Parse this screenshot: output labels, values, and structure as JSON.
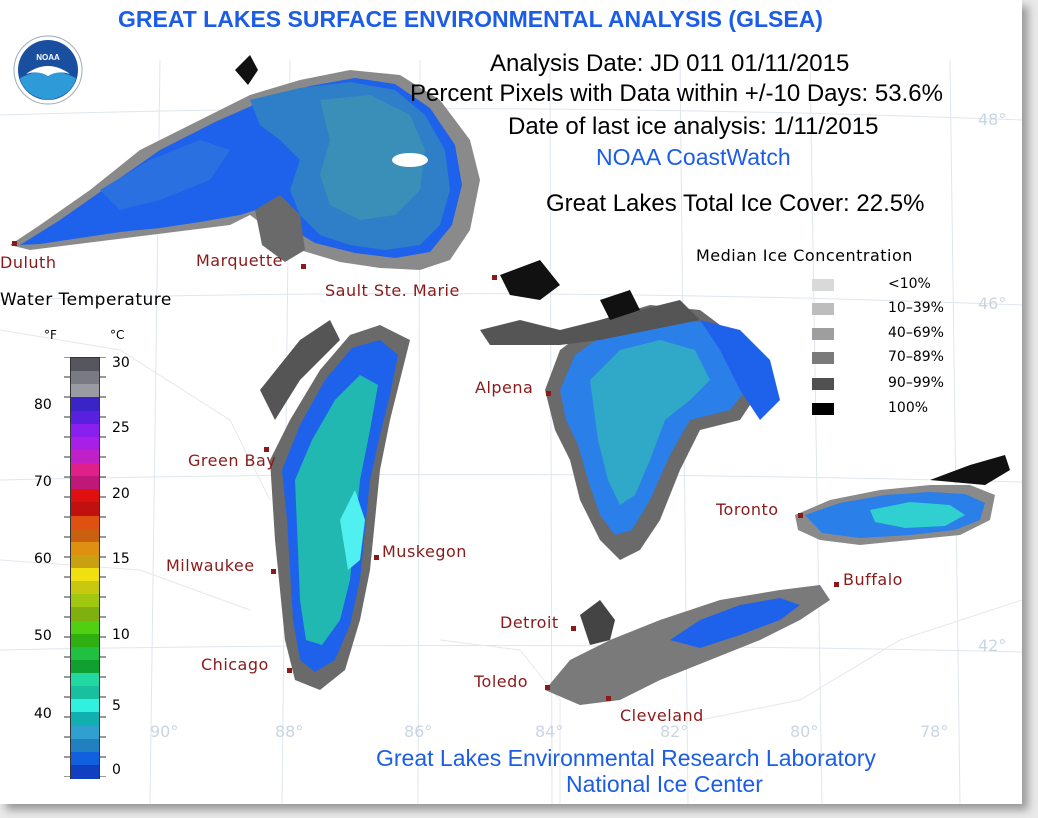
{
  "header": {
    "title": "GREAT LAKES SURFACE ENVIRONMENTAL ANALYSIS (GLSEA)",
    "analysis_date": "Analysis Date:  JD 011 01/11/2015",
    "percent_pixels": "Percent Pixels with Data within +/-10 Days:  53.6%",
    "last_ice": "Date of last ice analysis: 1/11/2015",
    "coastwatch": "NOAA CoastWatch",
    "total_ice": "Great Lakes Total Ice Cover:  22.5%"
  },
  "logo": {
    "text": "NOAA"
  },
  "cities": [
    {
      "name": "Duluth"
    },
    {
      "name": "Marquette"
    },
    {
      "name": "Sault Ste. Marie"
    },
    {
      "name": "Green Bay"
    },
    {
      "name": "Alpena"
    },
    {
      "name": "Milwaukee"
    },
    {
      "name": "Muskegon"
    },
    {
      "name": "Toronto"
    },
    {
      "name": "Buffalo"
    },
    {
      "name": "Detroit"
    },
    {
      "name": "Chicago"
    },
    {
      "name": "Toledo"
    },
    {
      "name": "Cleveland"
    }
  ],
  "graticule": {
    "lat_labels": [
      "48°",
      "46°",
      "42°"
    ],
    "lon_labels": [
      "90°",
      "88°",
      "86°",
      "84°",
      "82°",
      "80°",
      "78°"
    ]
  },
  "ice_legend": {
    "title": "Median Ice Concentration",
    "items": [
      {
        "label": "<10%",
        "color": "#d9d9d9"
      },
      {
        "label": "10–39%",
        "color": "#bdbdbd"
      },
      {
        "label": "40–69%",
        "color": "#9e9e9e"
      },
      {
        "label": "70–89%",
        "color": "#7a7a7a"
      },
      {
        "label": "90–99%",
        "color": "#505050"
      },
      {
        "label": "100%",
        "color": "#000000"
      }
    ]
  },
  "temp_legend": {
    "title": "Water Temperature",
    "unit_f": "°F",
    "unit_c": "°C",
    "f_ticks": [
      "80",
      "70",
      "60",
      "50",
      "40"
    ],
    "c_ticks": [
      "30",
      "25",
      "20",
      "15",
      "10",
      "5",
      "0"
    ],
    "colors": [
      "#56565e",
      "#7a7a84",
      "#9a9aa2",
      "#3a24c8",
      "#5a20e0",
      "#8a20f0",
      "#a820e8",
      "#c020c8",
      "#e0208a",
      "#c01878",
      "#e01010",
      "#c01010",
      "#e05010",
      "#c86010",
      "#e09010",
      "#c8a010",
      "#f0e010",
      "#c8c810",
      "#a0c810",
      "#80b010",
      "#50d010",
      "#30b010",
      "#20c040",
      "#10a030",
      "#20d8a0",
      "#18c0a0",
      "#30f0e0",
      "#10b0b0",
      "#30a0d0",
      "#2080c0",
      "#1060e0",
      "#1040c0"
    ]
  },
  "footer": {
    "line1": "Great Lakes Environmental Research Laboratory",
    "line2": "National Ice Center"
  },
  "colors": {
    "title_blue": "#1c5de8",
    "city_red": "#8a1a1a"
  }
}
